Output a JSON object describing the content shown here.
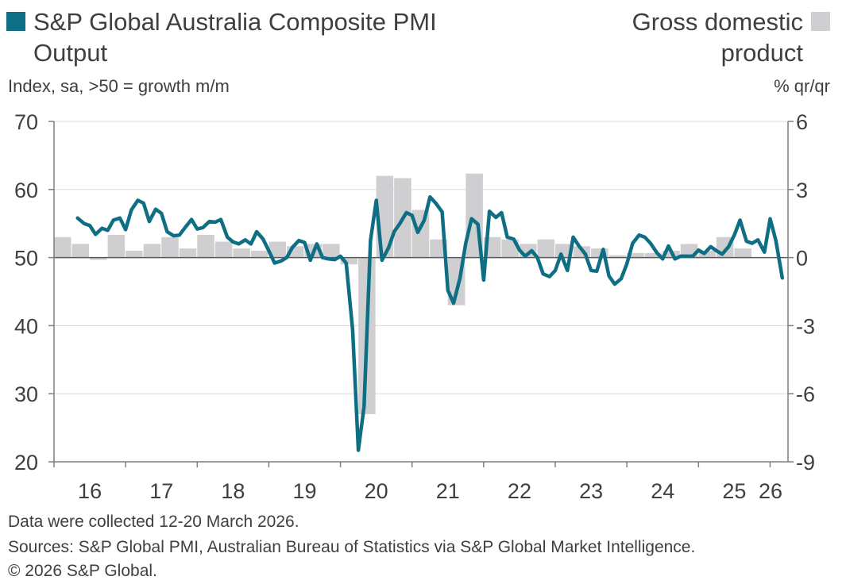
{
  "legend": {
    "left_line1": "S&P Global Australia Composite PMI",
    "left_line2": "Output",
    "right_line1": "Gross domestic",
    "right_line2": "product",
    "pmi_color": "#0e6e84",
    "gdp_color": "#cfcfd1"
  },
  "units": {
    "left": "Index, sa, >50 = growth m/m",
    "right": "% qr/qr"
  },
  "footer": {
    "line1": "Data were collected 12-20 March 2026.",
    "line2": "Sources: S&P Global PMI, Australian Bureau of Statistics via S&P Global Market Intelligence.",
    "line3": "© 2026 S&P Global."
  },
  "chart_data": {
    "type": "line",
    "left_axis": {
      "min": 20,
      "max": 70,
      "ticks": [
        "70",
        "60",
        "50",
        "40",
        "30",
        "20"
      ]
    },
    "right_axis": {
      "min": -9,
      "max": 6,
      "ticks": [
        "6",
        "3",
        "0",
        "-3",
        "-6",
        "-9"
      ]
    },
    "x_axis": {
      "start": 2016.0,
      "end": 2026.25,
      "ticks": [
        "16",
        "17",
        "18",
        "19",
        "20",
        "21",
        "22",
        "23",
        "24",
        "25",
        "26"
      ]
    },
    "grid": true,
    "series": [
      {
        "name": "S&P Global Australia Composite PMI Output",
        "axis": "left",
        "color": "#0e6e84",
        "points": [
          [
            2016.33,
            55.8
          ],
          [
            2016.42,
            55.0
          ],
          [
            2016.5,
            54.7
          ],
          [
            2016.58,
            53.4
          ],
          [
            2016.67,
            54.3
          ],
          [
            2016.75,
            54.0
          ],
          [
            2016.83,
            55.5
          ],
          [
            2016.92,
            55.8
          ],
          [
            2017.0,
            54.1
          ],
          [
            2017.08,
            57.0
          ],
          [
            2017.17,
            58.4
          ],
          [
            2017.25,
            58.0
          ],
          [
            2017.33,
            55.3
          ],
          [
            2017.42,
            57.1
          ],
          [
            2017.5,
            56.5
          ],
          [
            2017.58,
            53.8
          ],
          [
            2017.67,
            53.2
          ],
          [
            2017.75,
            53.3
          ],
          [
            2017.83,
            54.4
          ],
          [
            2017.92,
            55.6
          ],
          [
            2018.0,
            54.2
          ],
          [
            2018.08,
            54.4
          ],
          [
            2018.17,
            55.3
          ],
          [
            2018.25,
            55.2
          ],
          [
            2018.33,
            55.6
          ],
          [
            2018.42,
            53.0
          ],
          [
            2018.5,
            52.3
          ],
          [
            2018.58,
            52.0
          ],
          [
            2018.67,
            52.6
          ],
          [
            2018.75,
            52.0
          ],
          [
            2018.83,
            53.8
          ],
          [
            2018.92,
            52.7
          ],
          [
            2019.0,
            51.0
          ],
          [
            2019.08,
            49.2
          ],
          [
            2019.17,
            49.5
          ],
          [
            2019.25,
            50.0
          ],
          [
            2019.33,
            51.5
          ],
          [
            2019.42,
            52.5
          ],
          [
            2019.5,
            52.2
          ],
          [
            2019.58,
            49.6
          ],
          [
            2019.67,
            52.0
          ],
          [
            2019.75,
            50.0
          ],
          [
            2019.83,
            49.8
          ],
          [
            2019.92,
            49.7
          ],
          [
            2020.0,
            50.2
          ],
          [
            2020.08,
            49.2
          ],
          [
            2020.17,
            39.4
          ],
          [
            2020.25,
            21.7
          ],
          [
            2020.33,
            28.1
          ],
          [
            2020.42,
            52.5
          ],
          [
            2020.5,
            58.4
          ],
          [
            2020.58,
            49.6
          ],
          [
            2020.67,
            51.4
          ],
          [
            2020.75,
            53.8
          ],
          [
            2020.83,
            55.0
          ],
          [
            2020.92,
            56.6
          ],
          [
            2021.0,
            56.2
          ],
          [
            2021.08,
            53.7
          ],
          [
            2021.17,
            55.5
          ],
          [
            2021.25,
            58.9
          ],
          [
            2021.33,
            58.0
          ],
          [
            2021.42,
            56.7
          ],
          [
            2021.5,
            45.2
          ],
          [
            2021.58,
            43.3
          ],
          [
            2021.67,
            47.0
          ],
          [
            2021.75,
            52.1
          ],
          [
            2021.83,
            55.7
          ],
          [
            2021.92,
            54.9
          ],
          [
            2022.0,
            46.7
          ],
          [
            2022.08,
            56.8
          ],
          [
            2022.17,
            55.9
          ],
          [
            2022.25,
            56.6
          ],
          [
            2022.33,
            53.0
          ],
          [
            2022.42,
            52.7
          ],
          [
            2022.5,
            51.1
          ],
          [
            2022.58,
            50.2
          ],
          [
            2022.67,
            51.0
          ],
          [
            2022.75,
            50.0
          ],
          [
            2022.83,
            47.6
          ],
          [
            2022.92,
            47.2
          ],
          [
            2023.0,
            48.1
          ],
          [
            2023.08,
            50.5
          ],
          [
            2023.17,
            48.1
          ],
          [
            2023.25,
            53.0
          ],
          [
            2023.33,
            51.7
          ],
          [
            2023.42,
            50.5
          ],
          [
            2023.5,
            48.1
          ],
          [
            2023.58,
            48.0
          ],
          [
            2023.67,
            51.2
          ],
          [
            2023.75,
            47.3
          ],
          [
            2023.83,
            46.1
          ],
          [
            2023.92,
            46.9
          ],
          [
            2024.0,
            49.1
          ],
          [
            2024.08,
            52.1
          ],
          [
            2024.17,
            53.3
          ],
          [
            2024.25,
            53.0
          ],
          [
            2024.33,
            52.1
          ],
          [
            2024.42,
            50.7
          ],
          [
            2024.5,
            49.8
          ],
          [
            2024.58,
            51.7
          ],
          [
            2024.67,
            49.8
          ],
          [
            2024.75,
            50.2
          ],
          [
            2024.83,
            50.2
          ],
          [
            2024.92,
            50.2
          ],
          [
            2025.0,
            51.1
          ],
          [
            2025.08,
            50.6
          ],
          [
            2025.17,
            51.6
          ],
          [
            2025.25,
            51.0
          ],
          [
            2025.33,
            50.5
          ],
          [
            2025.42,
            51.6
          ],
          [
            2025.5,
            53.3
          ],
          [
            2025.58,
            55.5
          ],
          [
            2025.67,
            52.4
          ],
          [
            2025.75,
            52.1
          ],
          [
            2025.83,
            52.6
          ],
          [
            2025.92,
            50.8
          ],
          [
            2026.0,
            55.7
          ],
          [
            2026.08,
            52.5
          ],
          [
            2026.17,
            47.0
          ]
        ]
      },
      {
        "name": "Gross domestic product",
        "axis": "right",
        "type": "bar",
        "color": "#cfcfd1",
        "bars": [
          [
            "2016Q1",
            0.9
          ],
          [
            "2016Q2",
            0.6
          ],
          [
            "2016Q3",
            -0.1
          ],
          [
            "2016Q4",
            1.0
          ],
          [
            "2017Q1",
            0.3
          ],
          [
            "2017Q2",
            0.6
          ],
          [
            "2017Q3",
            0.9
          ],
          [
            "2017Q4",
            0.4
          ],
          [
            "2018Q1",
            1.0
          ],
          [
            "2018Q2",
            0.7
          ],
          [
            "2018Q3",
            0.4
          ],
          [
            "2018Q4",
            0.3
          ],
          [
            "2019Q1",
            0.7
          ],
          [
            "2019Q2",
            0.5
          ],
          [
            "2019Q3",
            0.6
          ],
          [
            "2019Q4",
            0.6
          ],
          [
            "2020Q1",
            -0.3
          ],
          [
            "2020Q2",
            -6.9
          ],
          [
            "2020Q3",
            3.6
          ],
          [
            "2020Q4",
            3.5
          ],
          [
            "2021Q1",
            2.1
          ],
          [
            "2021Q2",
            0.8
          ],
          [
            "2021Q3",
            -2.1
          ],
          [
            "2021Q4",
            3.7
          ],
          [
            "2022Q1",
            0.9
          ],
          [
            "2022Q2",
            0.8
          ],
          [
            "2022Q3",
            0.6
          ],
          [
            "2022Q4",
            0.8
          ],
          [
            "2023Q1",
            0.6
          ],
          [
            "2023Q2",
            0.5
          ],
          [
            "2023Q3",
            0.4
          ],
          [
            "2023Q4",
            0.1
          ],
          [
            "2024Q1",
            0.2
          ],
          [
            "2024Q2",
            0.2
          ],
          [
            "2024Q3",
            0.3
          ],
          [
            "2024Q4",
            0.6
          ],
          [
            "2025Q1",
            0.3
          ],
          [
            "2025Q2",
            0.9
          ],
          [
            "2025Q3",
            0.4
          ]
        ]
      }
    ]
  }
}
